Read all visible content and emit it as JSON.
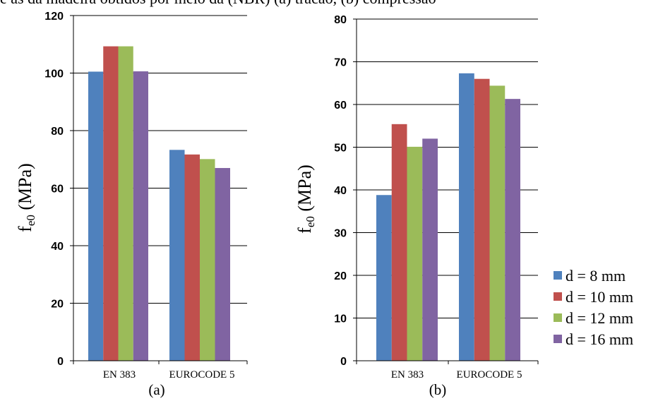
{
  "caption_fragment": "e as da madeira obtidos por meio da (NBR) (a) tracao, (b) compressao",
  "legend": [
    {
      "label": "d = 8 mm",
      "color": "#4F81BD"
    },
    {
      "label": "d = 10 mm",
      "color": "#C0504D"
    },
    {
      "label": "d = 12 mm",
      "color": "#9BBB59"
    },
    {
      "label": "d = 16 mm",
      "color": "#8064A2"
    }
  ],
  "chart_data": [
    {
      "type": "bar",
      "subtitle": "(a)",
      "ylabel_main": "f",
      "ylabel_sub": "e0",
      "ylabel_rest": " (MPa)",
      "categories": [
        "EN 383",
        "EUROCODE 5"
      ],
      "ylim": [
        0,
        120
      ],
      "yticks": [
        0,
        20,
        40,
        60,
        80,
        100,
        120
      ],
      "grid": true,
      "series": [
        {
          "name": "d = 8 mm",
          "values": [
            100.5,
            73.3
          ]
        },
        {
          "name": "d = 10 mm",
          "values": [
            109.3,
            71.7
          ]
        },
        {
          "name": "d = 12 mm",
          "values": [
            109.3,
            70.1
          ]
        },
        {
          "name": "d = 16 mm",
          "values": [
            100.6,
            67.0
          ]
        }
      ]
    },
    {
      "type": "bar",
      "subtitle": "(b)",
      "ylabel_main": "f",
      "ylabel_sub": "e0",
      "ylabel_rest": " (MPa)",
      "categories": [
        "EN 383",
        "EUROCODE 5"
      ],
      "ylim": [
        0,
        80
      ],
      "yticks": [
        0,
        10,
        20,
        30,
        40,
        50,
        60,
        70,
        80
      ],
      "grid": true,
      "series": [
        {
          "name": "d = 8 mm",
          "values": [
            38.8,
            67.3
          ]
        },
        {
          "name": "d = 10 mm",
          "values": [
            55.4,
            66.0
          ]
        },
        {
          "name": "d = 12 mm",
          "values": [
            50.1,
            64.4
          ]
        },
        {
          "name": "d = 16 mm",
          "values": [
            52.0,
            61.3
          ]
        }
      ]
    }
  ]
}
